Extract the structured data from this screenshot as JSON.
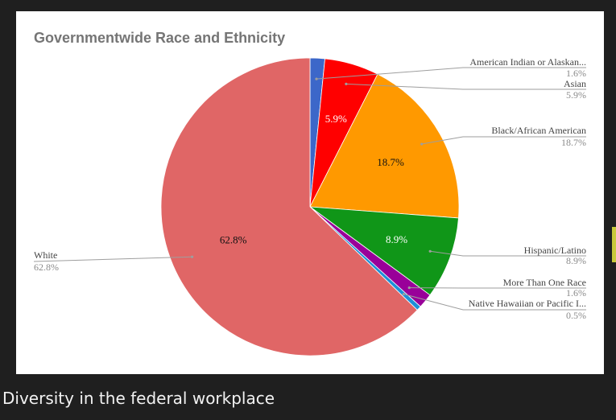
{
  "caption": "Diversity in the federal workplace",
  "chart_data": {
    "type": "pie",
    "title": "Governmentwide Race and Ethnicity",
    "slices": [
      {
        "label": "American Indian or Alaskan...",
        "value": 1.6,
        "pct_label": "1.6%",
        "color": "#3c67c9"
      },
      {
        "label": "Asian",
        "value": 5.9,
        "pct_label": "5.9%",
        "color": "#ff0000"
      },
      {
        "label": "Black/African American",
        "value": 18.7,
        "pct_label": "18.7%",
        "color": "#ff9900"
      },
      {
        "label": "Hispanic/Latino",
        "value": 8.9,
        "pct_label": "8.9%",
        "color": "#109618"
      },
      {
        "label": "More Than One Race",
        "value": 1.6,
        "pct_label": "1.6%",
        "color": "#990099"
      },
      {
        "label": "Native Hawaiian or Pacific I...",
        "value": 0.5,
        "pct_label": "0.5%",
        "color": "#1e90d8"
      },
      {
        "label": "White",
        "value": 62.8,
        "pct_label": "62.8%",
        "color": "#e06666"
      }
    ],
    "inside_labels": [
      "5.9%",
      "18.7%",
      "8.9%",
      "62.8%"
    ]
  }
}
